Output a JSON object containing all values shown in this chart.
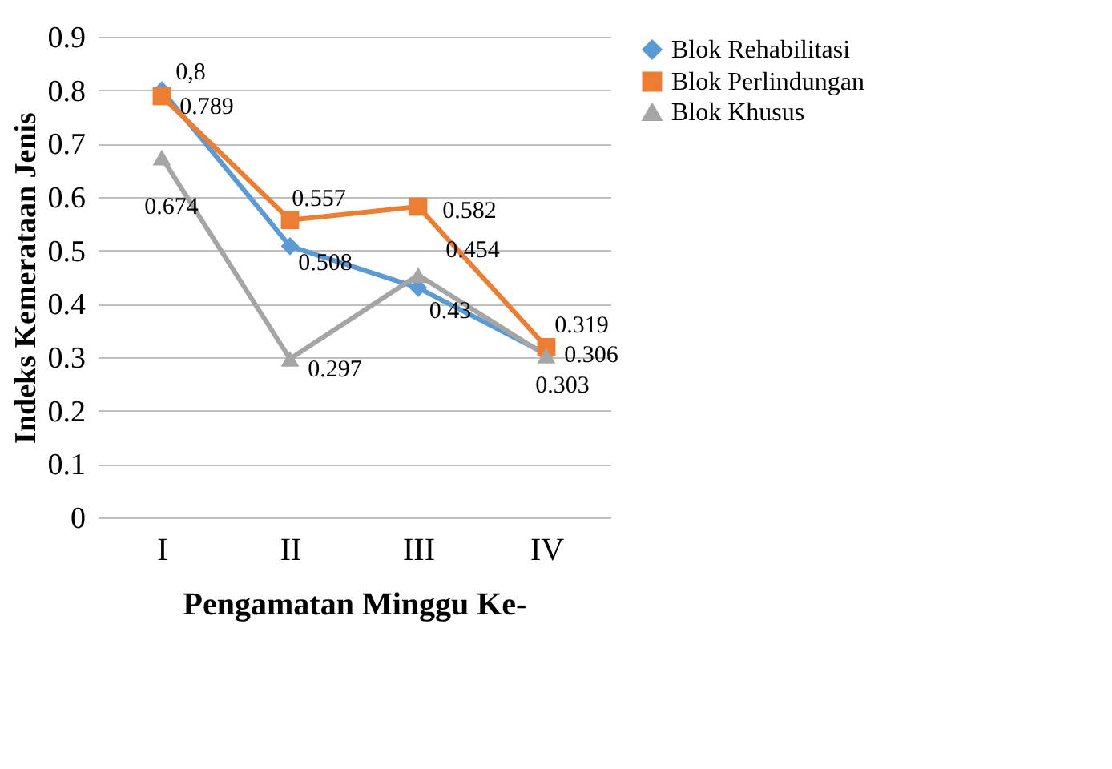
{
  "chart_data": {
    "type": "line",
    "xlabel": "Pengamatan Minggu Ke-",
    "ylabel": "Indeks Kemerataan Jenis",
    "categories": [
      "I",
      "II",
      "III",
      "IV"
    ],
    "series": [
      {
        "name": "Blok Rehabilitasi",
        "color": "#5b9bd5",
        "marker": "diamond",
        "values": [
          0.8,
          0.508,
          0.43,
          0.306
        ],
        "value_labels": [
          "0,8",
          "0.508",
          "0.43",
          "0.306"
        ]
      },
      {
        "name": "Blok Perlindungan",
        "color": "#ed7d31",
        "marker": "square",
        "values": [
          0.789,
          0.557,
          0.582,
          0.319
        ],
        "value_labels": [
          "0.789",
          "0.557",
          "0.582",
          "0.319"
        ]
      },
      {
        "name": "Blok Khusus",
        "color": "#a5a5a5",
        "marker": "triangle",
        "values": [
          0.674,
          0.297,
          0.454,
          0.303
        ],
        "value_labels": [
          "0.674",
          "0.297",
          "0.454",
          "0.303"
        ]
      }
    ],
    "ylim": [
      0,
      0.9
    ],
    "yticks": [
      0,
      0.1,
      0.2,
      0.3,
      0.4,
      0.5,
      0.6,
      0.7,
      0.8,
      0.9
    ],
    "grid": "y",
    "legend": "right",
    "line_style": "solid"
  }
}
